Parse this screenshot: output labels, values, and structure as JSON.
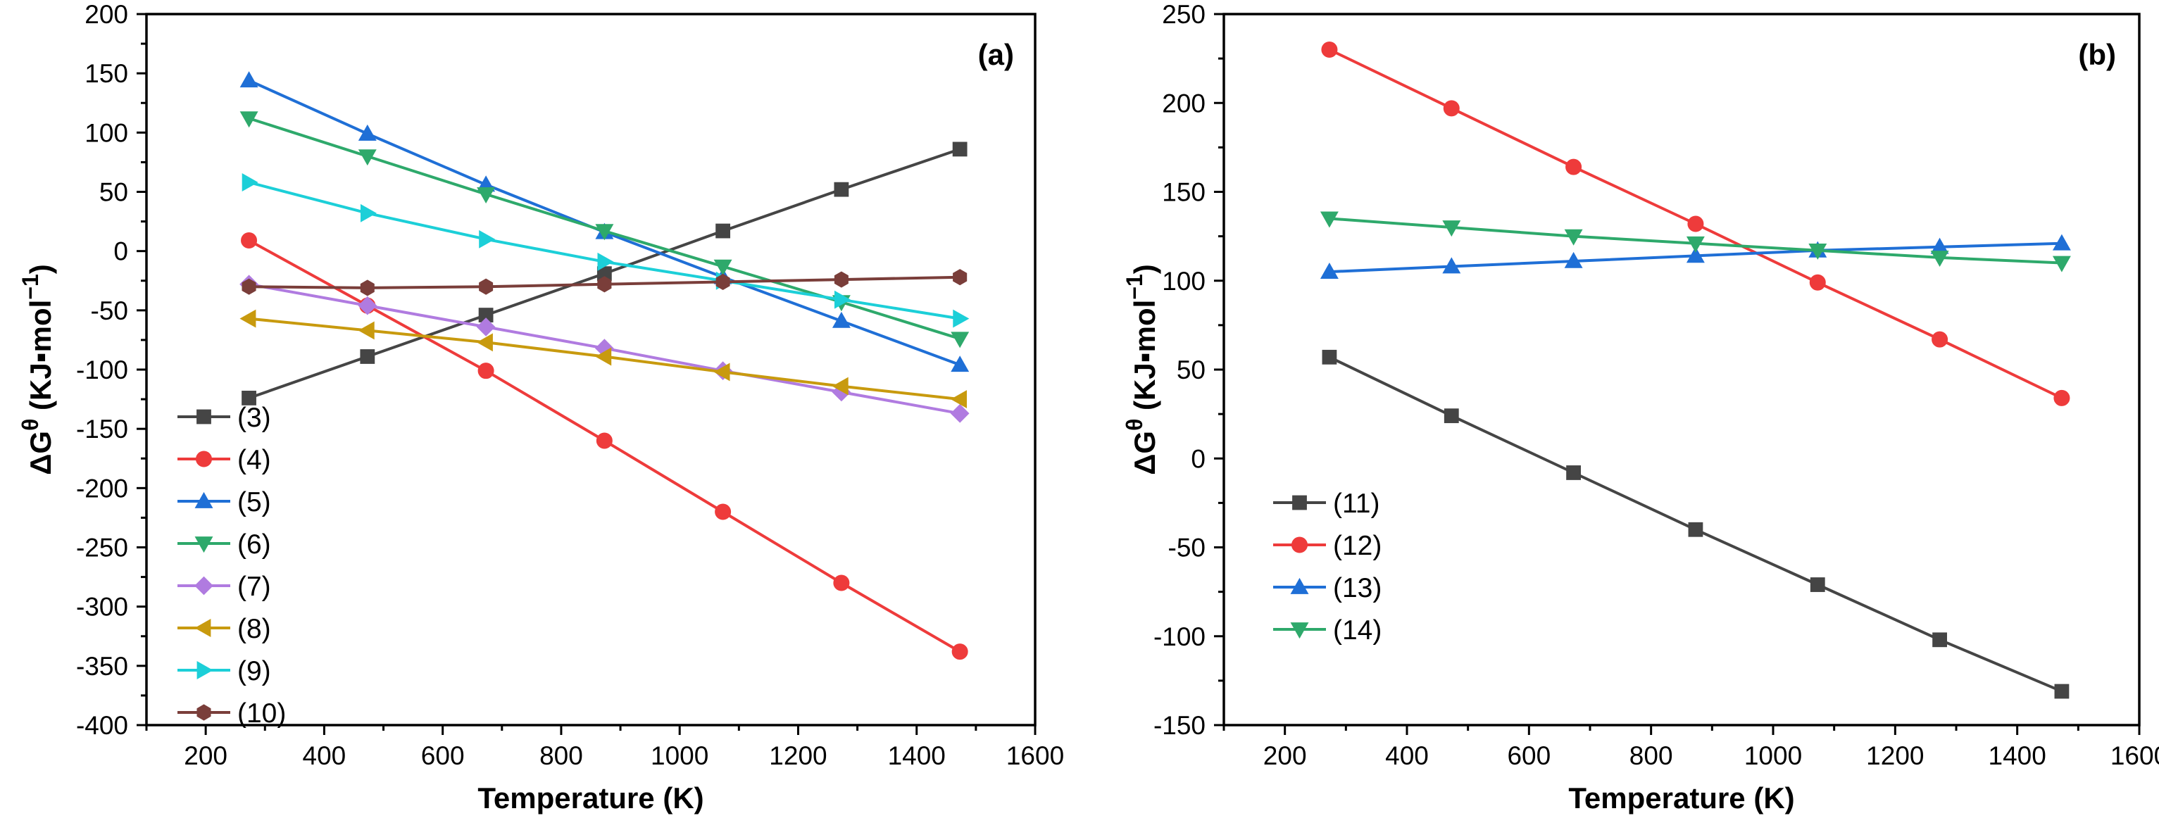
{
  "chart_data": [
    {
      "type": "line",
      "panel_label": "(a)",
      "xlabel": "Temperature (K)",
      "ylabel": {
        "base": "ΔG",
        "sup": "θ",
        "units": "(KJ▪mol",
        "units_sup": "−1",
        "close": ")"
      },
      "xlim": [
        100,
        1600
      ],
      "ylim": [
        -400,
        200
      ],
      "xticks": [
        200,
        400,
        600,
        800,
        1000,
        1200,
        1400,
        1600
      ],
      "yticks": [
        200,
        150,
        100,
        50,
        0,
        -50,
        -100,
        -150,
        -200,
        -250,
        -300,
        -350,
        -400
      ],
      "x": [
        273,
        473,
        673,
        873,
        1073,
        1273,
        1473
      ],
      "legend_position": "bottom-left",
      "series": [
        {
          "name": "(3)",
          "color": "#454545",
          "marker": "square",
          "values": [
            -124,
            -89,
            -54,
            -19,
            17,
            52,
            86
          ]
        },
        {
          "name": "(4)",
          "color": "#ee3b3b",
          "marker": "circle",
          "values": [
            9,
            -46,
            -101,
            -160,
            -220,
            -280,
            -338
          ]
        },
        {
          "name": "(5)",
          "color": "#1f6fd6",
          "marker": "triangle-up",
          "values": [
            144,
            99,
            56,
            16,
            -22,
            -59,
            -96
          ]
        },
        {
          "name": "(6)",
          "color": "#2ea96b",
          "marker": "triangle-down",
          "values": [
            112,
            80,
            48,
            17,
            -13,
            -43,
            -74
          ]
        },
        {
          "name": "(7)",
          "color": "#b07be0",
          "marker": "diamond",
          "values": [
            -28,
            -46,
            -64,
            -82,
            -101,
            -119,
            -137
          ]
        },
        {
          "name": "(8)",
          "color": "#c89a0e",
          "marker": "triangle-left",
          "values": [
            -57,
            -67,
            -77,
            -89,
            -102,
            -114,
            -125
          ]
        },
        {
          "name": "(9)",
          "color": "#1ccfd8",
          "marker": "triangle-right",
          "values": [
            58,
            32,
            10,
            -9,
            -25,
            -41,
            -57
          ]
        },
        {
          "name": "(10)",
          "color": "#7a3e3a",
          "marker": "hexagon",
          "values": [
            -30,
            -31,
            -30,
            -28,
            -26,
            -24,
            -22
          ]
        }
      ]
    },
    {
      "type": "line",
      "panel_label": "(b)",
      "xlabel": "Temperature (K)",
      "ylabel": {
        "base": "ΔG",
        "sup": "θ",
        "units": "(KJ▪mol",
        "units_sup": "−1",
        "close": ")"
      },
      "xlim": [
        100,
        1600
      ],
      "ylim": [
        -150,
        250
      ],
      "xticks": [
        200,
        400,
        600,
        800,
        1000,
        1200,
        1400,
        1600
      ],
      "yticks": [
        250,
        200,
        150,
        100,
        50,
        0,
        -50,
        -100,
        -150
      ],
      "x": [
        273,
        473,
        673,
        873,
        1073,
        1273,
        1473
      ],
      "legend_position": "lower-left",
      "series": [
        {
          "name": "(11)",
          "color": "#454545",
          "marker": "square",
          "values": [
            57,
            24,
            -8,
            -40,
            -71,
            -102,
            -131
          ]
        },
        {
          "name": "(12)",
          "color": "#ee3b3b",
          "marker": "circle",
          "values": [
            230,
            197,
            164,
            132,
            99,
            67,
            34
          ]
        },
        {
          "name": "(13)",
          "color": "#1f6fd6",
          "marker": "triangle-up",
          "values": [
            105,
            108,
            111,
            114,
            117,
            119,
            121
          ]
        },
        {
          "name": "(14)",
          "color": "#2ea96b",
          "marker": "triangle-down",
          "values": [
            135,
            130,
            125,
            121,
            117,
            113,
            110
          ]
        }
      ]
    }
  ]
}
